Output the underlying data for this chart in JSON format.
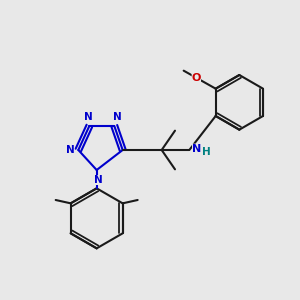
{
  "bg_color": "#e8e8e8",
  "bond_color": "#1a1a1a",
  "blue": "#0000cc",
  "red": "#cc0000",
  "teal": "#008080",
  "lw": 1.5,
  "dlw": 1.0,
  "atoms": {
    "N_label": "N",
    "H_label": "H",
    "O_label": "O"
  }
}
